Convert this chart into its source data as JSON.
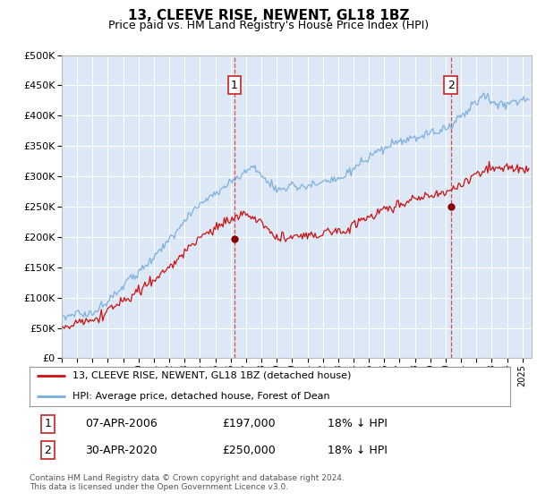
{
  "title": "13, CLEEVE RISE, NEWENT, GL18 1BZ",
  "subtitle": "Price paid vs. HM Land Registry's House Price Index (HPI)",
  "ylim": [
    0,
    500000
  ],
  "yticks": [
    0,
    50000,
    100000,
    150000,
    200000,
    250000,
    300000,
    350000,
    400000,
    450000,
    500000
  ],
  "hpi_color": "#7aaddd",
  "price_color": "#cc1111",
  "bg_color": "#dce8f5",
  "transaction1": {
    "date": "07-APR-2006",
    "price": 197000,
    "label": "1",
    "pct": "18% ↓ HPI",
    "year": 2006.25
  },
  "transaction2": {
    "date": "30-APR-2020",
    "price": 250000,
    "label": "2",
    "pct": "18% ↓ HPI",
    "year": 2020.33
  },
  "legend1": "13, CLEEVE RISE, NEWENT, GL18 1BZ (detached house)",
  "legend2": "HPI: Average price, detached house, Forest of Dean",
  "footnote1": "Contains HM Land Registry data © Crown copyright and database right 2024.",
  "footnote2": "This data is licensed under the Open Government Licence v3.0.",
  "title_fontsize": 11,
  "subtitle_fontsize": 9,
  "tick_fontsize": 8,
  "legend_fontsize": 8,
  "table_fontsize": 9,
  "footnote_fontsize": 6.5
}
